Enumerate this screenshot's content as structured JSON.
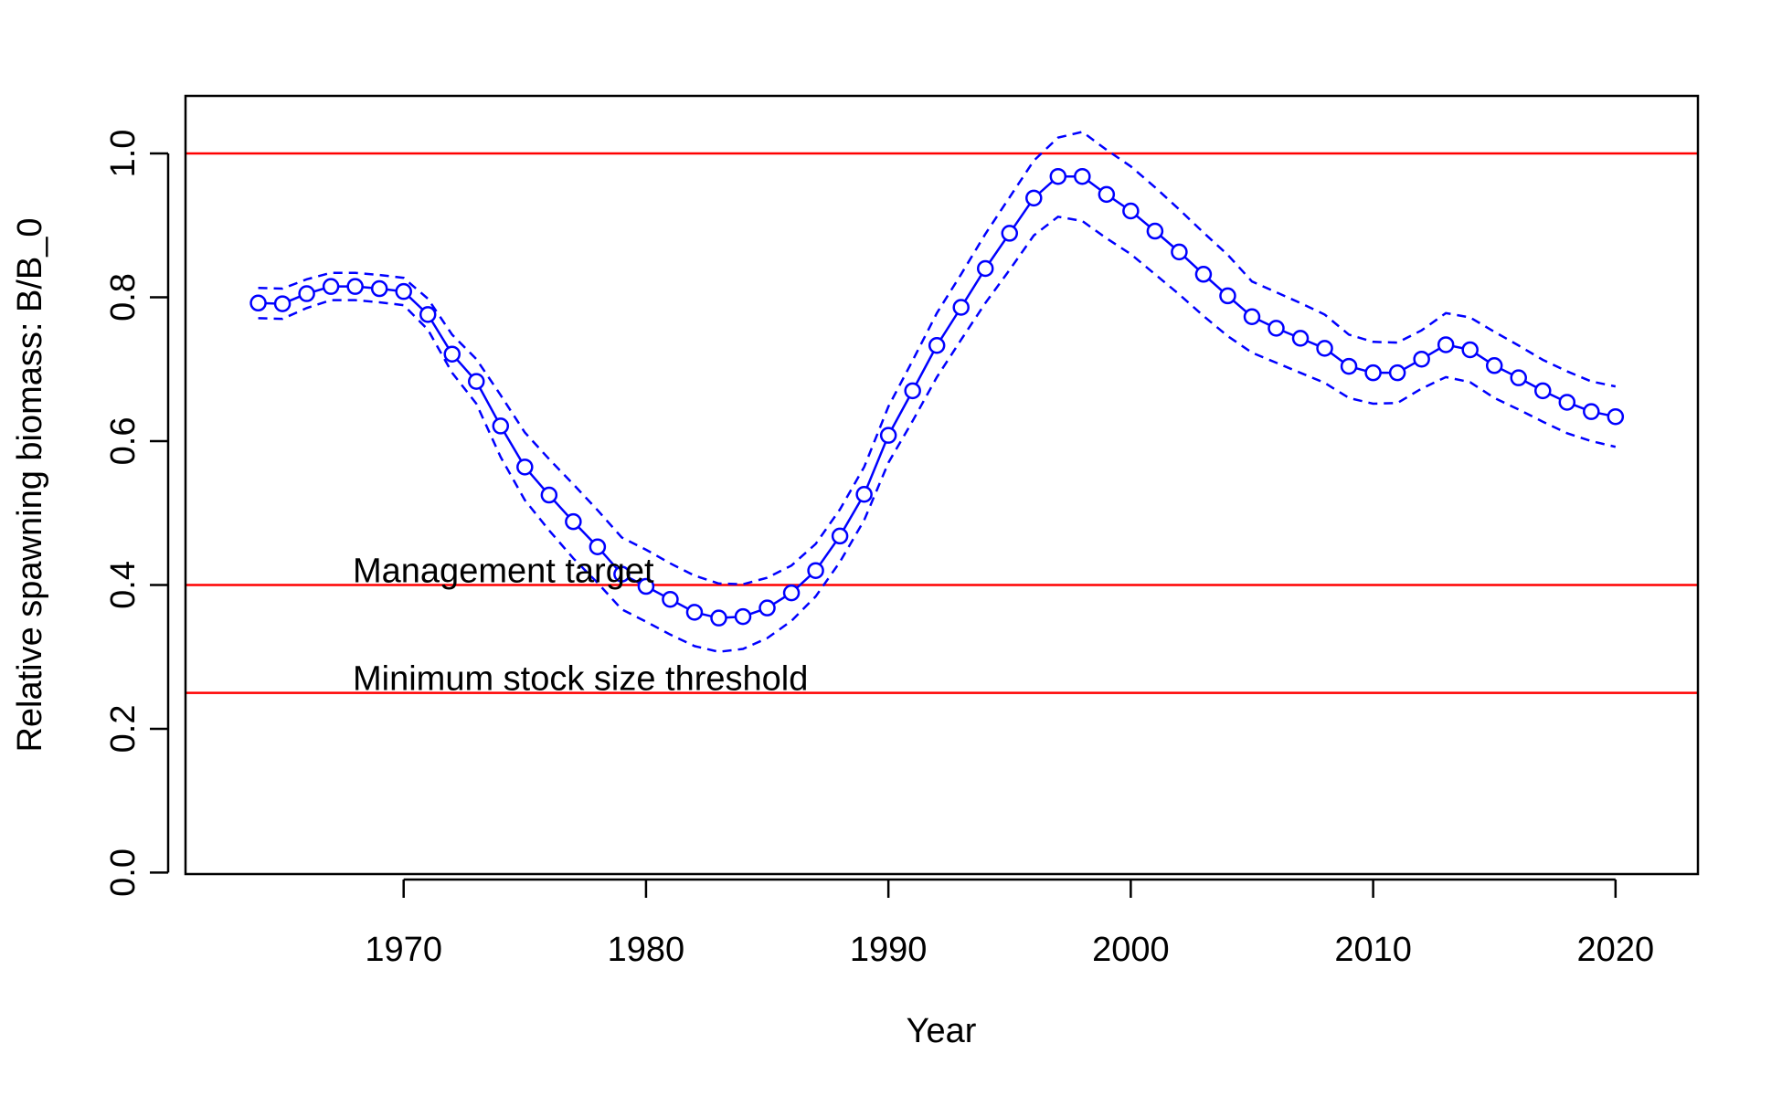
{
  "chart_data": {
    "type": "line",
    "xlabel": "Year",
    "ylabel": "Relative spawning biomass: B/B_0",
    "xlim": [
      1961,
      2023.4
    ],
    "ylim": [
      -0.002,
      1.08
    ],
    "xticks": [
      1970,
      1980,
      1990,
      2000,
      2010,
      2020
    ],
    "yticks": [
      0.0,
      0.2,
      0.4,
      0.6,
      0.8,
      1.0
    ],
    "ytick_labels": [
      "0.0",
      "0.2",
      "0.4",
      "0.6",
      "0.8",
      "1.0"
    ],
    "grid": false,
    "x": [
      1964,
      1965,
      1966,
      1967,
      1968,
      1969,
      1970,
      1971,
      1972,
      1973,
      1974,
      1975,
      1976,
      1977,
      1978,
      1979,
      1980,
      1981,
      1982,
      1983,
      1984,
      1985,
      1986,
      1987,
      1988,
      1989,
      1990,
      1991,
      1992,
      1993,
      1994,
      1995,
      1996,
      1997,
      1998,
      1999,
      2000,
      2001,
      2002,
      2003,
      2004,
      2005,
      2006,
      2007,
      2008,
      2009,
      2010,
      2011,
      2012,
      2013,
      2014,
      2015,
      2016,
      2017,
      2018,
      2019,
      2020
    ],
    "series": [
      {
        "role": "estimate",
        "color": "#0000ff",
        "style": "solid-with-circles",
        "values": [
          0.792,
          0.791,
          0.805,
          0.815,
          0.815,
          0.812,
          0.808,
          0.776,
          0.721,
          0.683,
          0.621,
          0.564,
          0.525,
          0.488,
          0.453,
          0.415,
          0.398,
          0.38,
          0.362,
          0.354,
          0.356,
          0.368,
          0.389,
          0.42,
          0.468,
          0.526,
          0.608,
          0.67,
          0.733,
          0.786,
          0.84,
          0.889,
          0.938,
          0.968,
          0.968,
          0.943,
          0.92,
          0.892,
          0.863,
          0.832,
          0.802,
          0.773,
          0.757,
          0.743,
          0.729,
          0.704,
          0.695,
          0.695,
          0.714,
          0.734,
          0.727,
          0.705,
          0.688,
          0.67,
          0.654,
          0.641,
          0.634
        ]
      },
      {
        "role": "upper-bound",
        "color": "#0000ff",
        "style": "dashed",
        "values": [
          0.813,
          0.812,
          0.825,
          0.834,
          0.834,
          0.831,
          0.827,
          0.798,
          0.748,
          0.714,
          0.664,
          0.612,
          0.575,
          0.54,
          0.504,
          0.466,
          0.449,
          0.43,
          0.413,
          0.402,
          0.401,
          0.41,
          0.427,
          0.457,
          0.505,
          0.564,
          0.648,
          0.712,
          0.778,
          0.832,
          0.888,
          0.939,
          0.99,
          1.022,
          1.03,
          1.005,
          0.982,
          0.953,
          0.922,
          0.89,
          0.859,
          0.822,
          0.807,
          0.792,
          0.776,
          0.748,
          0.738,
          0.737,
          0.754,
          0.778,
          0.772,
          0.752,
          0.733,
          0.713,
          0.697,
          0.683,
          0.676
        ]
      },
      {
        "role": "lower-bound",
        "color": "#0000ff",
        "style": "dashed",
        "values": [
          0.771,
          0.77,
          0.785,
          0.796,
          0.796,
          0.793,
          0.789,
          0.755,
          0.695,
          0.652,
          0.578,
          0.518,
          0.476,
          0.437,
          0.403,
          0.366,
          0.349,
          0.331,
          0.315,
          0.307,
          0.311,
          0.326,
          0.35,
          0.384,
          0.432,
          0.49,
          0.57,
          0.628,
          0.689,
          0.741,
          0.792,
          0.838,
          0.886,
          0.912,
          0.906,
          0.882,
          0.86,
          0.832,
          0.804,
          0.774,
          0.746,
          0.723,
          0.709,
          0.695,
          0.681,
          0.66,
          0.652,
          0.653,
          0.673,
          0.689,
          0.682,
          0.66,
          0.644,
          0.627,
          0.611,
          0.6,
          0.592
        ]
      }
    ],
    "reference_lines": [
      {
        "y": 1.0,
        "color": "#ff0000",
        "label": ""
      },
      {
        "y": 0.4,
        "color": "#ff0000",
        "label": "Management target"
      },
      {
        "y": 0.25,
        "color": "#ff0000",
        "label": "Minimum stock size threshold"
      }
    ],
    "annotations": [
      {
        "text": "Management target",
        "x": 1967.9,
        "y": 0.4
      },
      {
        "text": "Minimum stock size threshold",
        "x": 1967.9,
        "y": 0.25
      }
    ]
  }
}
